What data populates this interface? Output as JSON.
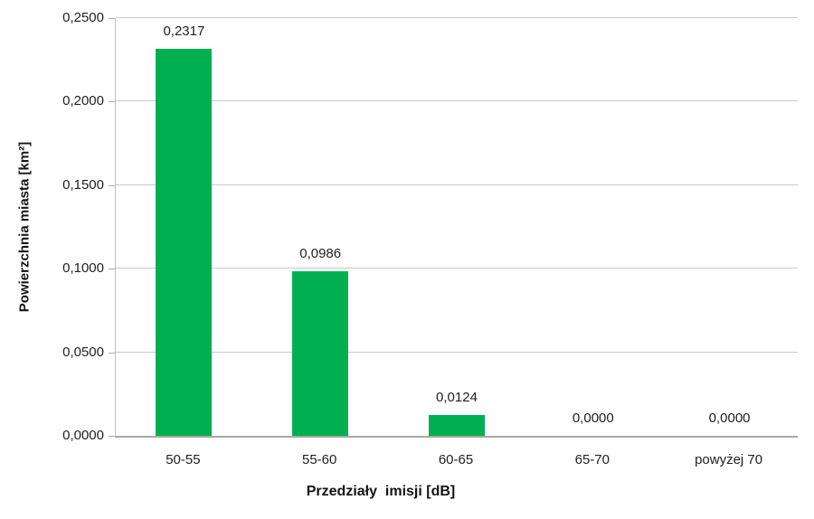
{
  "chart_data": {
    "type": "bar",
    "title": "",
    "categories": [
      "50-55",
      "55-60",
      "60-65",
      "65-70",
      "powyżej 70"
    ],
    "values": [
      0.2317,
      0.0986,
      0.0124,
      0.0,
      0.0
    ],
    "value_labels": [
      "0,2317",
      "0,0986",
      "0,0124",
      "0,0000",
      "0,0000"
    ],
    "xlabel": "Przedziały  imisji [dB]",
    "ylabel": "Powierzchnia miasta [km²]",
    "ylim": [
      0,
      0.25
    ],
    "yticks": [
      {
        "value": 0.0,
        "label": "0,0000"
      },
      {
        "value": 0.05,
        "label": "0,0500"
      },
      {
        "value": 0.1,
        "label": "0,1000"
      },
      {
        "value": 0.15,
        "label": "0,1500"
      },
      {
        "value": 0.2,
        "label": "0,2000"
      },
      {
        "value": 0.25,
        "label": "0,2500"
      }
    ],
    "grid": "horizontal",
    "legend": "none",
    "colors": {
      "bar": "#00B050",
      "gridline": "#C9C9C9",
      "axis_line": "#BFBFBF",
      "baseline": "#A6A6A6",
      "text": "#1F1F1F"
    }
  }
}
